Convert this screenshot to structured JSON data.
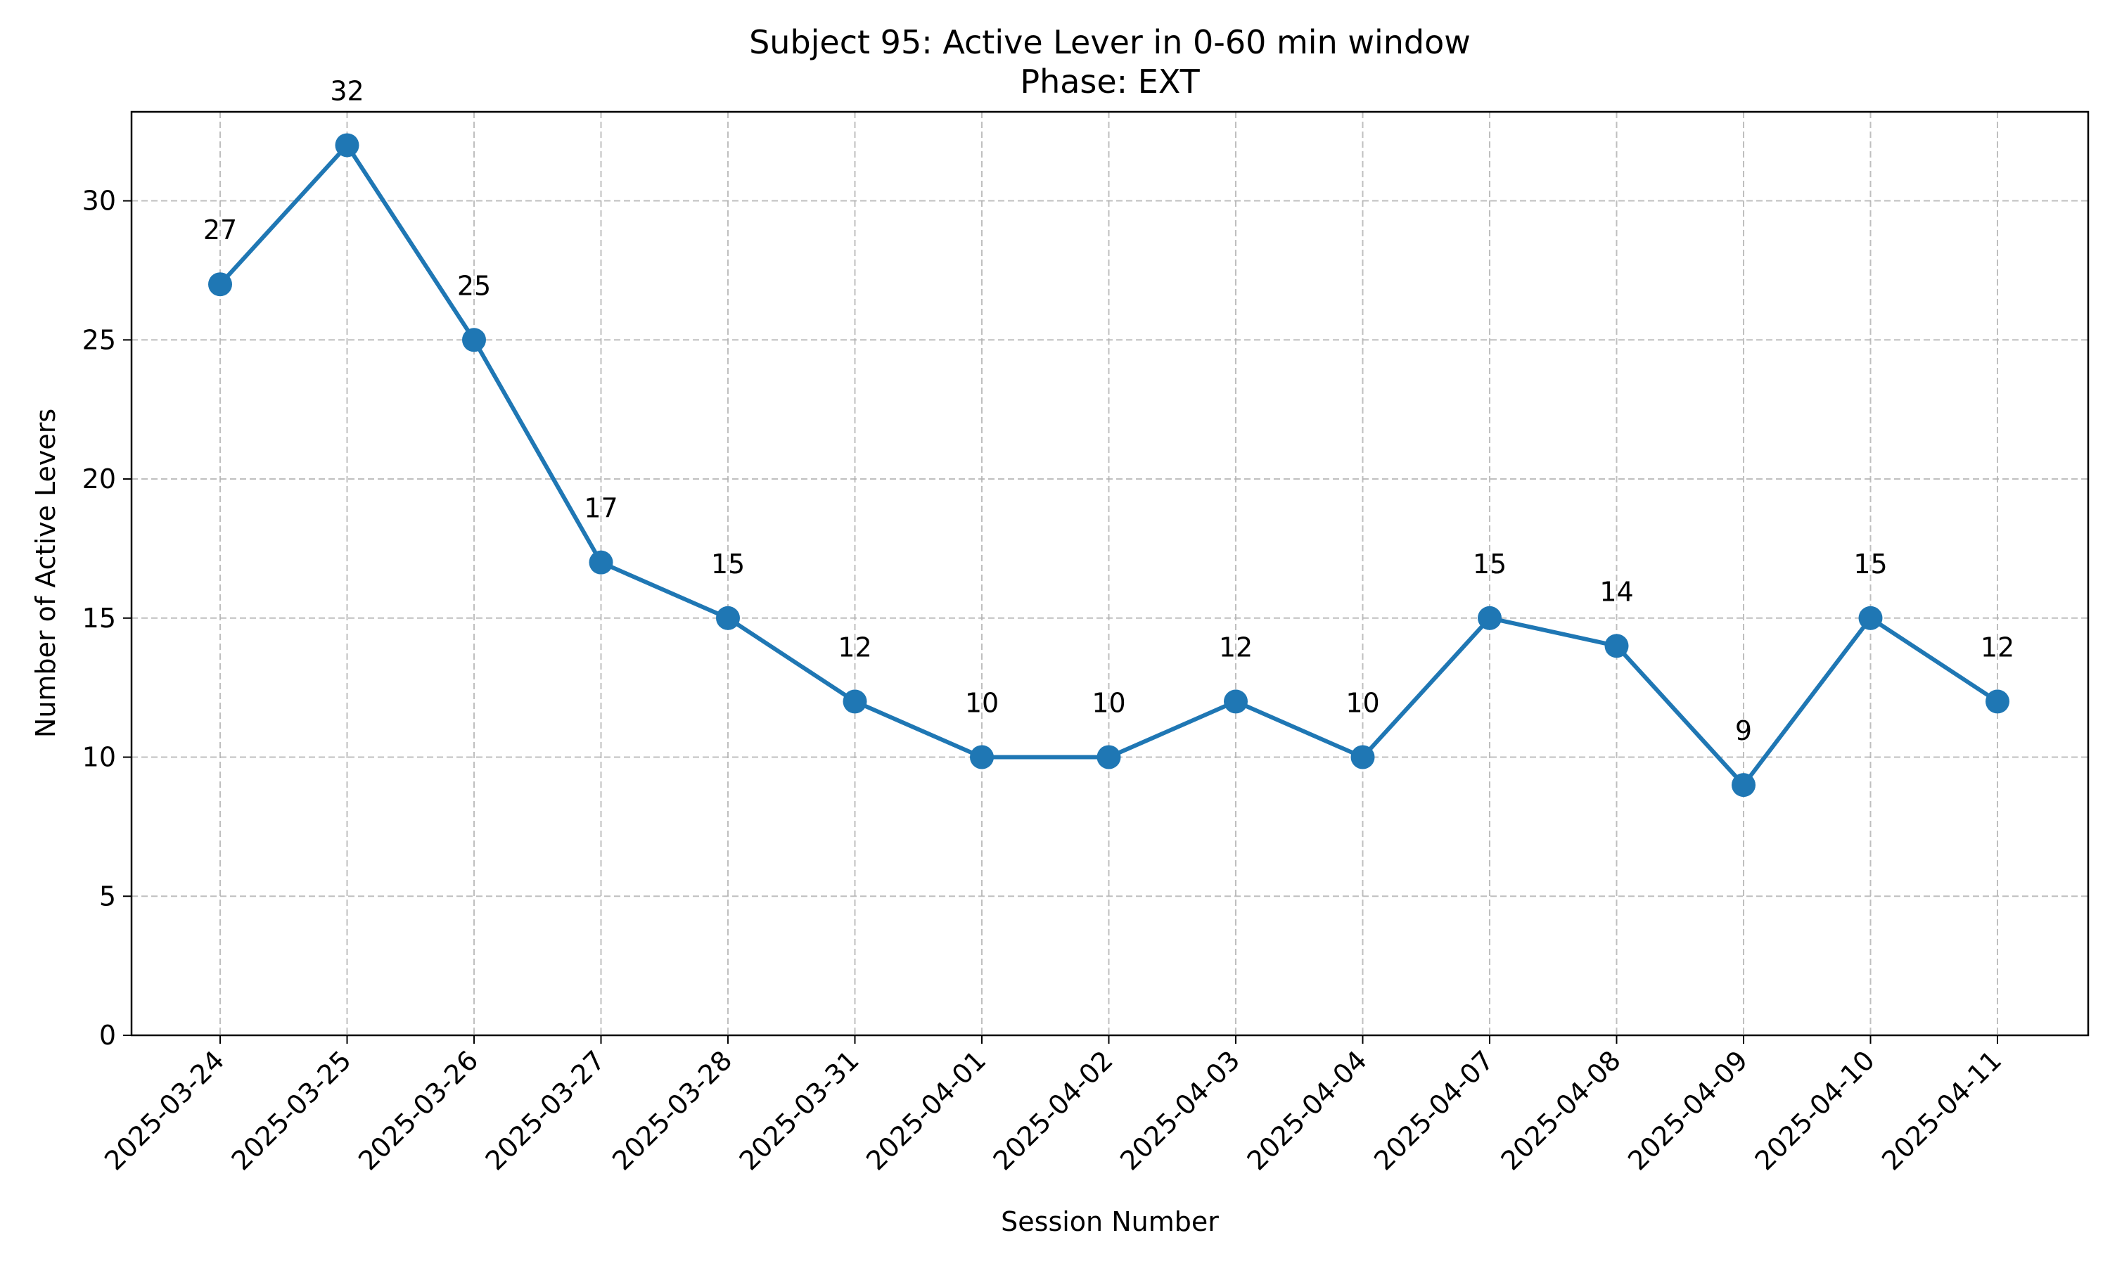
{
  "chart_data": {
    "type": "line",
    "title": "Subject 95: Active Lever in 0-60 min window",
    "subtitle": "Phase: EXT",
    "xlabel": "Session Number",
    "ylabel": "Number of Active Levers",
    "categories": [
      "2025-03-24",
      "2025-03-25",
      "2025-03-26",
      "2025-03-27",
      "2025-03-28",
      "2025-03-31",
      "2025-04-01",
      "2025-04-02",
      "2025-04-03",
      "2025-04-04",
      "2025-04-07",
      "2025-04-08",
      "2025-04-09",
      "2025-04-10",
      "2025-04-11"
    ],
    "series": [
      {
        "values": [
          27,
          32,
          25,
          17,
          15,
          12,
          10,
          10,
          12,
          10,
          15,
          14,
          9,
          15,
          12
        ],
        "color": "#1f77b4",
        "marker": "circle"
      }
    ],
    "data_labels": [
      "27",
      "32",
      "25",
      "17",
      "15",
      "12",
      "10",
      "10",
      "12",
      "10",
      "15",
      "14",
      "9",
      "15",
      "12"
    ],
    "ylim": [
      0,
      33.2
    ],
    "yticks": [
      0,
      5,
      10,
      15,
      20,
      25,
      30
    ],
    "ytick_labels": [
      "0",
      "5",
      "10",
      "15",
      "20",
      "25",
      "30"
    ],
    "grid": true,
    "legend": "none"
  }
}
